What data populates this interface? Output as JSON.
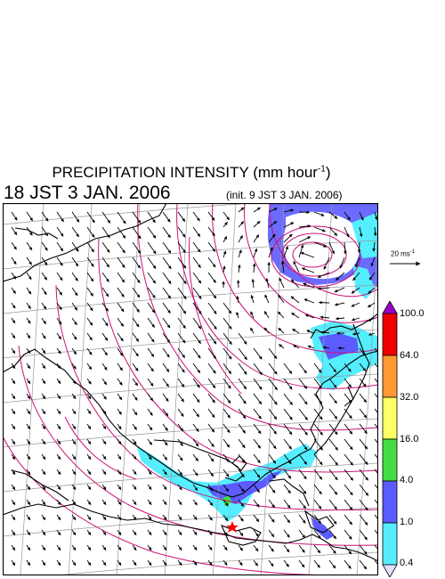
{
  "header": {
    "title_main": "PRECIPITATION INTENSITY (mm hour",
    "title_exp": "-1",
    "title_close": ")",
    "valid_time": "18 JST 3 JAN. 2006",
    "init_time": "(init. 9 JST 3 JAN. 2006)"
  },
  "wind_scale": {
    "label": "20 ms",
    "exp": "-1"
  },
  "legend": {
    "levels": [
      "100.0",
      "64.0",
      "32.0",
      "16.0",
      "4.0",
      "1.0",
      "0.4"
    ],
    "colors": [
      "#e0e0ff",
      "#55eeff",
      "#5b5bff",
      "#44dd44",
      "#ffff66",
      "#ff9933",
      "#ee0000",
      "#9900cc"
    ]
  },
  "map": {
    "marker": "red-star",
    "colors": {
      "coast": "#000000",
      "grid": "#999999",
      "isobar": "#cc1177",
      "precip_light": "#55eeff",
      "precip_mod": "#5b5bff"
    }
  }
}
